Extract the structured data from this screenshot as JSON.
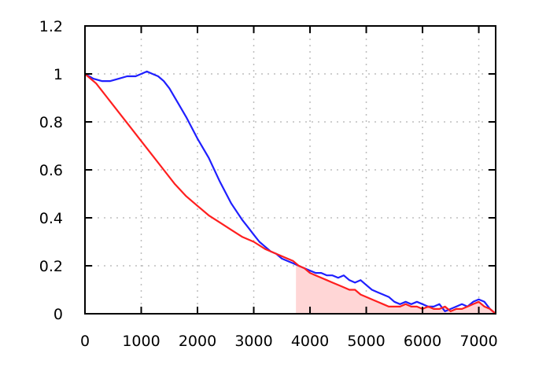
{
  "chart_data": {
    "type": "line",
    "title": "",
    "xlabel": "",
    "ylabel": "",
    "xlim": [
      0,
      7300
    ],
    "ylim": [
      0,
      1.2
    ],
    "xticks": [
      0,
      1000,
      2000,
      3000,
      4000,
      5000,
      6000,
      7000
    ],
    "xtick_labels": [
      "0",
      "1000",
      "2000",
      "3000",
      "4000",
      "5000",
      "6000",
      "7000"
    ],
    "yticks": [
      0,
      0.2,
      0.4,
      0.6,
      0.8,
      1.0,
      1.2
    ],
    "ytick_labels": [
      "0",
      "0.2",
      "0.4",
      "0.6",
      "0.8",
      "1",
      "1.2"
    ],
    "grid": true,
    "legend": "none",
    "colors": {
      "series_blue": "#1f1fff",
      "series_red": "#ff1f1f",
      "shade_fill": "#ffd6d6",
      "grid": "#bdbdbd",
      "axes": "#000000"
    },
    "shaded_region": {
      "x_start": 3750,
      "x_end": 7300,
      "under_series_index": 1
    },
    "series": [
      {
        "color": "#1f1fff",
        "x": [
          0,
          150,
          300,
          450,
          600,
          750,
          900,
          1000,
          1100,
          1200,
          1300,
          1400,
          1500,
          1650,
          1800,
          2000,
          2200,
          2400,
          2600,
          2800,
          2900,
          3000,
          3100,
          3200,
          3300,
          3400,
          3500,
          3600,
          3700,
          3800,
          3900,
          4000,
          4100,
          4200,
          4300,
          4400,
          4500,
          4600,
          4700,
          4800,
          4900,
          5000,
          5100,
          5200,
          5300,
          5400,
          5500,
          5600,
          5700,
          5800,
          5900,
          6000,
          6100,
          6200,
          6300,
          6400,
          6500,
          6600,
          6700,
          6800,
          6900,
          7000,
          7100,
          7200,
          7300
        ],
        "y": [
          1.0,
          0.98,
          0.97,
          0.97,
          0.98,
          0.99,
          0.99,
          1.0,
          1.01,
          1.0,
          0.99,
          0.97,
          0.94,
          0.88,
          0.82,
          0.73,
          0.65,
          0.55,
          0.46,
          0.39,
          0.36,
          0.33,
          0.3,
          0.28,
          0.26,
          0.25,
          0.23,
          0.22,
          0.21,
          0.2,
          0.19,
          0.18,
          0.17,
          0.17,
          0.16,
          0.16,
          0.15,
          0.16,
          0.14,
          0.13,
          0.14,
          0.12,
          0.1,
          0.09,
          0.08,
          0.07,
          0.05,
          0.04,
          0.05,
          0.04,
          0.05,
          0.04,
          0.03,
          0.03,
          0.04,
          0.01,
          0.02,
          0.03,
          0.04,
          0.03,
          0.05,
          0.06,
          0.05,
          0.02,
          0.0
        ]
      },
      {
        "color": "#ff1f1f",
        "x": [
          0,
          200,
          400,
          600,
          800,
          1000,
          1200,
          1400,
          1600,
          1800,
          2000,
          2200,
          2400,
          2600,
          2800,
          3000,
          3200,
          3400,
          3600,
          3700,
          3800,
          3900,
          4000,
          4100,
          4200,
          4300,
          4400,
          4500,
          4600,
          4700,
          4800,
          4900,
          5000,
          5100,
          5200,
          5300,
          5400,
          5500,
          5600,
          5700,
          5800,
          5900,
          6000,
          6100,
          6200,
          6300,
          6400,
          6500,
          6600,
          6700,
          6800,
          6900,
          7000,
          7100,
          7200,
          7300
        ],
        "y": [
          1.0,
          0.96,
          0.9,
          0.84,
          0.78,
          0.72,
          0.66,
          0.6,
          0.54,
          0.49,
          0.45,
          0.41,
          0.38,
          0.35,
          0.32,
          0.3,
          0.27,
          0.25,
          0.23,
          0.22,
          0.2,
          0.19,
          0.17,
          0.16,
          0.15,
          0.14,
          0.13,
          0.12,
          0.11,
          0.1,
          0.1,
          0.08,
          0.07,
          0.06,
          0.05,
          0.04,
          0.03,
          0.03,
          0.03,
          0.04,
          0.03,
          0.03,
          0.02,
          0.03,
          0.02,
          0.02,
          0.03,
          0.01,
          0.02,
          0.02,
          0.03,
          0.04,
          0.05,
          0.03,
          0.02,
          0.0
        ]
      }
    ]
  }
}
